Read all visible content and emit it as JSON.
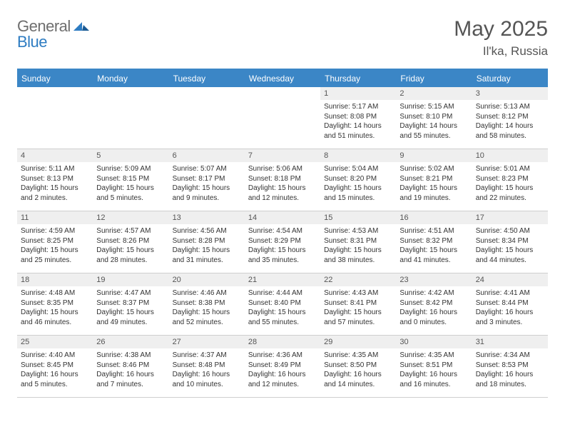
{
  "logo": {
    "textA": "General",
    "textB": "Blue"
  },
  "title": "May 2025",
  "subtitle": "Il'ka, Russia",
  "colors": {
    "accent": "#3b86c6",
    "headerText": "#ffffff",
    "cellNumBg": "#efefef",
    "border": "#cfcfcf",
    "titleColor": "#555555",
    "bodyText": "#333333",
    "logoGray": "#6e6e6e",
    "logoBlue": "#2e7cc2",
    "pageBg": "#ffffff"
  },
  "typography": {
    "titleFontSize": 30,
    "subtitleFontSize": 17,
    "dayHeaderFontSize": 12,
    "cellNumFontSize": 11,
    "cellBodyFontSize": 10,
    "logoFontSize": 22
  },
  "layout": {
    "pageWidth": 792,
    "pageHeight": 612,
    "cellMinHeight": 86,
    "columns": 7
  },
  "dayNames": [
    "Sunday",
    "Monday",
    "Tuesday",
    "Wednesday",
    "Thursday",
    "Friday",
    "Saturday"
  ],
  "weeks": [
    [
      {
        "day": "",
        "sunrise": "",
        "sunset": "",
        "daylight": ""
      },
      {
        "day": "",
        "sunrise": "",
        "sunset": "",
        "daylight": ""
      },
      {
        "day": "",
        "sunrise": "",
        "sunset": "",
        "daylight": ""
      },
      {
        "day": "",
        "sunrise": "",
        "sunset": "",
        "daylight": ""
      },
      {
        "day": "1",
        "sunrise": "Sunrise: 5:17 AM",
        "sunset": "Sunset: 8:08 PM",
        "daylight": "Daylight: 14 hours and 51 minutes."
      },
      {
        "day": "2",
        "sunrise": "Sunrise: 5:15 AM",
        "sunset": "Sunset: 8:10 PM",
        "daylight": "Daylight: 14 hours and 55 minutes."
      },
      {
        "day": "3",
        "sunrise": "Sunrise: 5:13 AM",
        "sunset": "Sunset: 8:12 PM",
        "daylight": "Daylight: 14 hours and 58 minutes."
      }
    ],
    [
      {
        "day": "4",
        "sunrise": "Sunrise: 5:11 AM",
        "sunset": "Sunset: 8:13 PM",
        "daylight": "Daylight: 15 hours and 2 minutes."
      },
      {
        "day": "5",
        "sunrise": "Sunrise: 5:09 AM",
        "sunset": "Sunset: 8:15 PM",
        "daylight": "Daylight: 15 hours and 5 minutes."
      },
      {
        "day": "6",
        "sunrise": "Sunrise: 5:07 AM",
        "sunset": "Sunset: 8:17 PM",
        "daylight": "Daylight: 15 hours and 9 minutes."
      },
      {
        "day": "7",
        "sunrise": "Sunrise: 5:06 AM",
        "sunset": "Sunset: 8:18 PM",
        "daylight": "Daylight: 15 hours and 12 minutes."
      },
      {
        "day": "8",
        "sunrise": "Sunrise: 5:04 AM",
        "sunset": "Sunset: 8:20 PM",
        "daylight": "Daylight: 15 hours and 15 minutes."
      },
      {
        "day": "9",
        "sunrise": "Sunrise: 5:02 AM",
        "sunset": "Sunset: 8:21 PM",
        "daylight": "Daylight: 15 hours and 19 minutes."
      },
      {
        "day": "10",
        "sunrise": "Sunrise: 5:01 AM",
        "sunset": "Sunset: 8:23 PM",
        "daylight": "Daylight: 15 hours and 22 minutes."
      }
    ],
    [
      {
        "day": "11",
        "sunrise": "Sunrise: 4:59 AM",
        "sunset": "Sunset: 8:25 PM",
        "daylight": "Daylight: 15 hours and 25 minutes."
      },
      {
        "day": "12",
        "sunrise": "Sunrise: 4:57 AM",
        "sunset": "Sunset: 8:26 PM",
        "daylight": "Daylight: 15 hours and 28 minutes."
      },
      {
        "day": "13",
        "sunrise": "Sunrise: 4:56 AM",
        "sunset": "Sunset: 8:28 PM",
        "daylight": "Daylight: 15 hours and 31 minutes."
      },
      {
        "day": "14",
        "sunrise": "Sunrise: 4:54 AM",
        "sunset": "Sunset: 8:29 PM",
        "daylight": "Daylight: 15 hours and 35 minutes."
      },
      {
        "day": "15",
        "sunrise": "Sunrise: 4:53 AM",
        "sunset": "Sunset: 8:31 PM",
        "daylight": "Daylight: 15 hours and 38 minutes."
      },
      {
        "day": "16",
        "sunrise": "Sunrise: 4:51 AM",
        "sunset": "Sunset: 8:32 PM",
        "daylight": "Daylight: 15 hours and 41 minutes."
      },
      {
        "day": "17",
        "sunrise": "Sunrise: 4:50 AM",
        "sunset": "Sunset: 8:34 PM",
        "daylight": "Daylight: 15 hours and 44 minutes."
      }
    ],
    [
      {
        "day": "18",
        "sunrise": "Sunrise: 4:48 AM",
        "sunset": "Sunset: 8:35 PM",
        "daylight": "Daylight: 15 hours and 46 minutes."
      },
      {
        "day": "19",
        "sunrise": "Sunrise: 4:47 AM",
        "sunset": "Sunset: 8:37 PM",
        "daylight": "Daylight: 15 hours and 49 minutes."
      },
      {
        "day": "20",
        "sunrise": "Sunrise: 4:46 AM",
        "sunset": "Sunset: 8:38 PM",
        "daylight": "Daylight: 15 hours and 52 minutes."
      },
      {
        "day": "21",
        "sunrise": "Sunrise: 4:44 AM",
        "sunset": "Sunset: 8:40 PM",
        "daylight": "Daylight: 15 hours and 55 minutes."
      },
      {
        "day": "22",
        "sunrise": "Sunrise: 4:43 AM",
        "sunset": "Sunset: 8:41 PM",
        "daylight": "Daylight: 15 hours and 57 minutes."
      },
      {
        "day": "23",
        "sunrise": "Sunrise: 4:42 AM",
        "sunset": "Sunset: 8:42 PM",
        "daylight": "Daylight: 16 hours and 0 minutes."
      },
      {
        "day": "24",
        "sunrise": "Sunrise: 4:41 AM",
        "sunset": "Sunset: 8:44 PM",
        "daylight": "Daylight: 16 hours and 3 minutes."
      }
    ],
    [
      {
        "day": "25",
        "sunrise": "Sunrise: 4:40 AM",
        "sunset": "Sunset: 8:45 PM",
        "daylight": "Daylight: 16 hours and 5 minutes."
      },
      {
        "day": "26",
        "sunrise": "Sunrise: 4:38 AM",
        "sunset": "Sunset: 8:46 PM",
        "daylight": "Daylight: 16 hours and 7 minutes."
      },
      {
        "day": "27",
        "sunrise": "Sunrise: 4:37 AM",
        "sunset": "Sunset: 8:48 PM",
        "daylight": "Daylight: 16 hours and 10 minutes."
      },
      {
        "day": "28",
        "sunrise": "Sunrise: 4:36 AM",
        "sunset": "Sunset: 8:49 PM",
        "daylight": "Daylight: 16 hours and 12 minutes."
      },
      {
        "day": "29",
        "sunrise": "Sunrise: 4:35 AM",
        "sunset": "Sunset: 8:50 PM",
        "daylight": "Daylight: 16 hours and 14 minutes."
      },
      {
        "day": "30",
        "sunrise": "Sunrise: 4:35 AM",
        "sunset": "Sunset: 8:51 PM",
        "daylight": "Daylight: 16 hours and 16 minutes."
      },
      {
        "day": "31",
        "sunrise": "Sunrise: 4:34 AM",
        "sunset": "Sunset: 8:53 PM",
        "daylight": "Daylight: 16 hours and 18 minutes."
      }
    ]
  ]
}
